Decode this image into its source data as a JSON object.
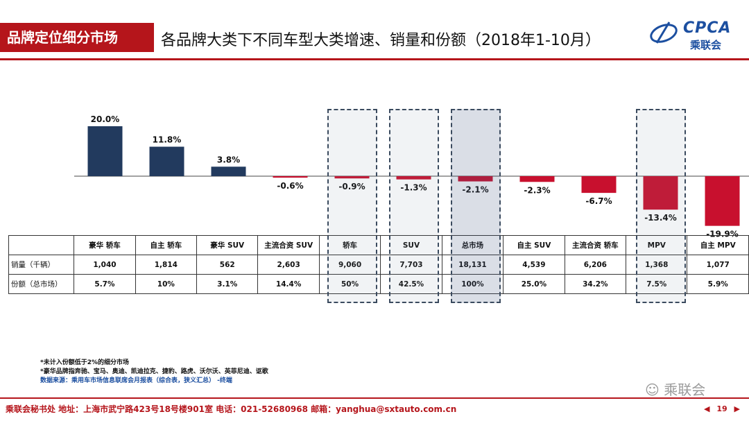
{
  "header": {
    "tag": "品牌定位细分市场",
    "title": "各品牌大类下不同车型大类增速、销量和份额（2018年1-10月）",
    "logo_text": "CPCA",
    "logo_cn": "乘联会"
  },
  "colors": {
    "positive": "#223a5e",
    "negative": "#c8102e",
    "accent": "#b5151b"
  },
  "chart_data": {
    "type": "bar",
    "categories": [
      "豪华 轿车",
      "自主 轿车",
      "豪华 SUV",
      "主流合资 SUV",
      "轿车",
      "SUV",
      "总市场",
      "自主 SUV",
      "主流合资 轿车",
      "MPV",
      "自主 MPV"
    ],
    "values": [
      20.0,
      11.8,
      3.8,
      -0.6,
      -0.9,
      -1.3,
      -2.1,
      -2.3,
      -6.7,
      -13.4,
      -19.9
    ],
    "labels": [
      "20.0%",
      "11.8%",
      "3.8%",
      "-0.6%",
      "-0.9%",
      "-1.3%",
      "-2.1%",
      "-2.3%",
      "-6.7%",
      "-13.4%",
      "-19.9%"
    ],
    "highlighted": [
      "轿车",
      "SUV",
      "总市场",
      "MPV"
    ],
    "ylim": [
      -20,
      21
    ]
  },
  "table": {
    "rows": [
      {
        "label": "销量（千辆）",
        "values": [
          "1,040",
          "1,814",
          "562",
          "2,603",
          "9,060",
          "7,703",
          "18,131",
          "4,539",
          "6,206",
          "1,368",
          "1,077"
        ]
      },
      {
        "label": "份额（总市场）",
        "values": [
          "5.7%",
          "10%",
          "3.1%",
          "14.4%",
          "50%",
          "42.5%",
          "100%",
          "25.0%",
          "34.2%",
          "7.5%",
          "5.9%"
        ]
      }
    ]
  },
  "notes": {
    "line1": "*未计入份额低于2%的细分市场",
    "line2": "*豪华品牌指奔驰、宝马、奥迪、凯迪拉克、捷豹、路虎、沃尔沃、英菲尼迪、讴歌",
    "source": "数据来源：乘用车市场信息联席会月报表（综合表，狭义汇总） -终端"
  },
  "watermark": "乘联会",
  "footer": {
    "text": "乘联会秘书处   地址：上海市武宁路423号18号楼901室  电话：021-52680968   邮箱：yanghua@sxtauto.com.cn"
  },
  "pager": {
    "prev": "◀",
    "page": "19",
    "next": "▶"
  }
}
